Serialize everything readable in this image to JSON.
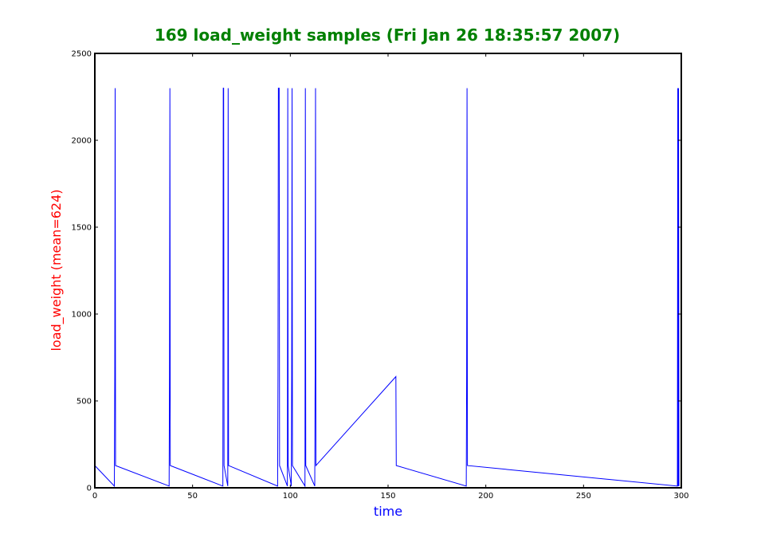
{
  "chart_data": {
    "type": "line",
    "title": "169 load_weight samples (Fri Jan 26 18:35:57 2007)",
    "xlabel": "time",
    "ylabel": "load_weight (mean=624)",
    "xlim": [
      0,
      300
    ],
    "ylim": [
      0,
      2500
    ],
    "xticks": [
      0,
      50,
      100,
      150,
      200,
      250,
      300
    ],
    "yticks": [
      0,
      500,
      1000,
      1500,
      2000,
      2500
    ],
    "grid": false,
    "colors": {
      "title": "#008000",
      "xlabel": "#0000ff",
      "ylabel": "#ff0000",
      "line": "#0000ff",
      "axes": "#000000"
    },
    "series": [
      {
        "points": [
          [
            0,
            128
          ],
          [
            10,
            10
          ],
          [
            10.2,
            650
          ],
          [
            10.4,
            2300
          ],
          [
            10.6,
            128
          ],
          [
            38,
            10
          ],
          [
            38.2,
            650
          ],
          [
            38.4,
            2300
          ],
          [
            38.6,
            128
          ],
          [
            65.5,
            10
          ],
          [
            65.7,
            2300
          ],
          [
            65.9,
            2300
          ],
          [
            66.1,
            128
          ],
          [
            68,
            10
          ],
          [
            68.2,
            2300
          ],
          [
            68.4,
            128
          ],
          [
            93.5,
            10
          ],
          [
            93.7,
            650
          ],
          [
            93.9,
            2300
          ],
          [
            94.1,
            2300
          ],
          [
            94.3,
            2300
          ],
          [
            94.5,
            128
          ],
          [
            98.5,
            10
          ],
          [
            98.7,
            2300
          ],
          [
            98.9,
            128
          ],
          [
            100.5,
            10
          ],
          [
            100.7,
            650
          ],
          [
            100.9,
            2300
          ],
          [
            101.1,
            128
          ],
          [
            107.5,
            10
          ],
          [
            107.7,
            2300
          ],
          [
            107.9,
            128
          ],
          [
            112.5,
            10
          ],
          [
            112.7,
            650
          ],
          [
            112.9,
            2300
          ],
          [
            113.1,
            128
          ],
          [
            154,
            640
          ],
          [
            154.2,
            128
          ],
          [
            190,
            10
          ],
          [
            190.2,
            650
          ],
          [
            190.4,
            2300
          ],
          [
            190.6,
            128
          ],
          [
            298,
            10
          ],
          [
            298.2,
            2300
          ],
          [
            298.4,
            10
          ],
          [
            298.6,
            2300
          ],
          [
            298.8,
            10
          ]
        ]
      }
    ]
  }
}
